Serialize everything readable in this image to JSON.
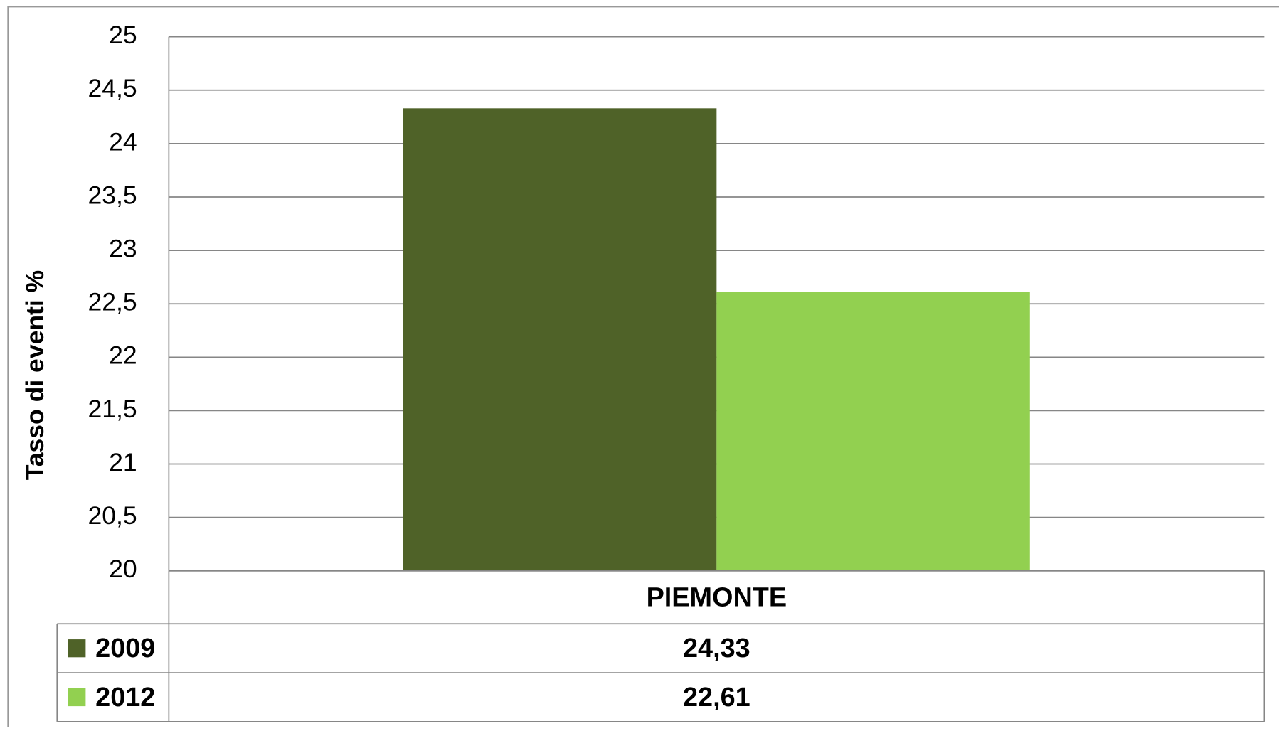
{
  "chart_data": {
    "type": "bar",
    "y_label": "Tasso di eventi %",
    "categories": [
      "PIEMONTE"
    ],
    "series": [
      {
        "name": "2009",
        "color": "#4f6228",
        "values": [
          24.33
        ],
        "value_labels": [
          "24,33"
        ]
      },
      {
        "name": "2012",
        "color": "#92d050",
        "values": [
          22.61
        ],
        "value_labels": [
          "22,61"
        ]
      }
    ],
    "ylim": [
      20,
      25
    ],
    "yticks": [
      20,
      {
        "value": 20.5,
        "label": "20,5"
      },
      21,
      {
        "value": 21.5,
        "label": "21,5"
      },
      22,
      {
        "value": 22.5,
        "label": "22,5"
      },
      23,
      {
        "value": 23.5,
        "label": "23,5"
      },
      24,
      {
        "value": 24.5,
        "label": "24,5"
      },
      25
    ],
    "grid": true,
    "legend": "data-table"
  }
}
